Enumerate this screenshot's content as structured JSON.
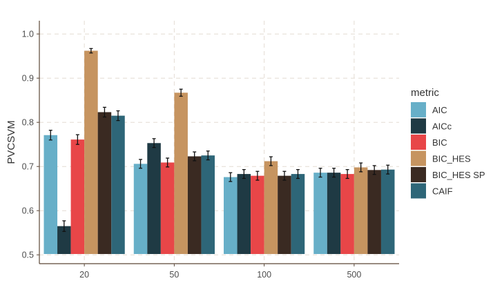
{
  "chart_data": {
    "type": "bar",
    "xlabel": "",
    "ylabel": "PVCSVM",
    "ylim": [
      0.48,
      1.03
    ],
    "yticks": [
      "0.5",
      "0.6",
      "0.7",
      "0.8",
      "0.9",
      "1.0"
    ],
    "categories": [
      "20",
      "50",
      "100",
      "500"
    ],
    "grid": true,
    "legend_title": "metric",
    "legend_position": "right",
    "series": [
      {
        "name": "AIC",
        "color": "#67AFC8",
        "values": [
          0.771,
          0.706,
          0.676,
          0.686
        ],
        "errors": [
          0.011,
          0.01,
          0.01,
          0.01
        ]
      },
      {
        "name": "AICc",
        "color": "#1F3A44",
        "values": [
          0.565,
          0.753,
          0.683,
          0.686
        ],
        "errors": [
          0.012,
          0.01,
          0.01,
          0.01
        ]
      },
      {
        "name": "BIC",
        "color": "#E84648",
        "values": [
          0.761,
          0.709,
          0.679,
          0.683
        ],
        "errors": [
          0.011,
          0.01,
          0.01,
          0.01
        ]
      },
      {
        "name": "BIC_HES",
        "color": "#C69460",
        "values": [
          0.962,
          0.867,
          0.712,
          0.698
        ],
        "errors": [
          0.005,
          0.008,
          0.01,
          0.01
        ]
      },
      {
        "name": "BIC_HES SP",
        "color": "#3A2A22",
        "values": [
          0.823,
          0.723,
          0.679,
          0.692
        ],
        "errors": [
          0.011,
          0.01,
          0.01,
          0.01
        ]
      },
      {
        "name": "CAIF",
        "color": "#2E6678",
        "values": [
          0.815,
          0.725,
          0.683,
          0.693
        ],
        "errors": [
          0.011,
          0.01,
          0.01,
          0.01
        ]
      }
    ]
  }
}
